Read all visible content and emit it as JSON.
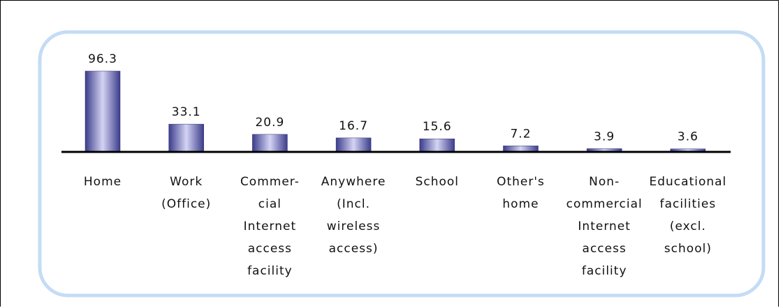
{
  "chart_data": {
    "type": "bar",
    "categories": [
      "Home",
      "Work\n(Office)",
      "Commer-\ncial\nInternet\naccess\nfacility",
      "Anywhere\n(Incl.\nwireless\naccess)",
      "School",
      "Other's\nhome",
      "Non-\ncommercial\nInternet\naccess\nfacility",
      "Educational\nfacilities\n(excl.\nschool)"
    ],
    "values": [
      96.3,
      33.1,
      20.9,
      16.7,
      15.6,
      7.2,
      3.9,
      3.6
    ],
    "color": "#3c3c8c"
  }
}
